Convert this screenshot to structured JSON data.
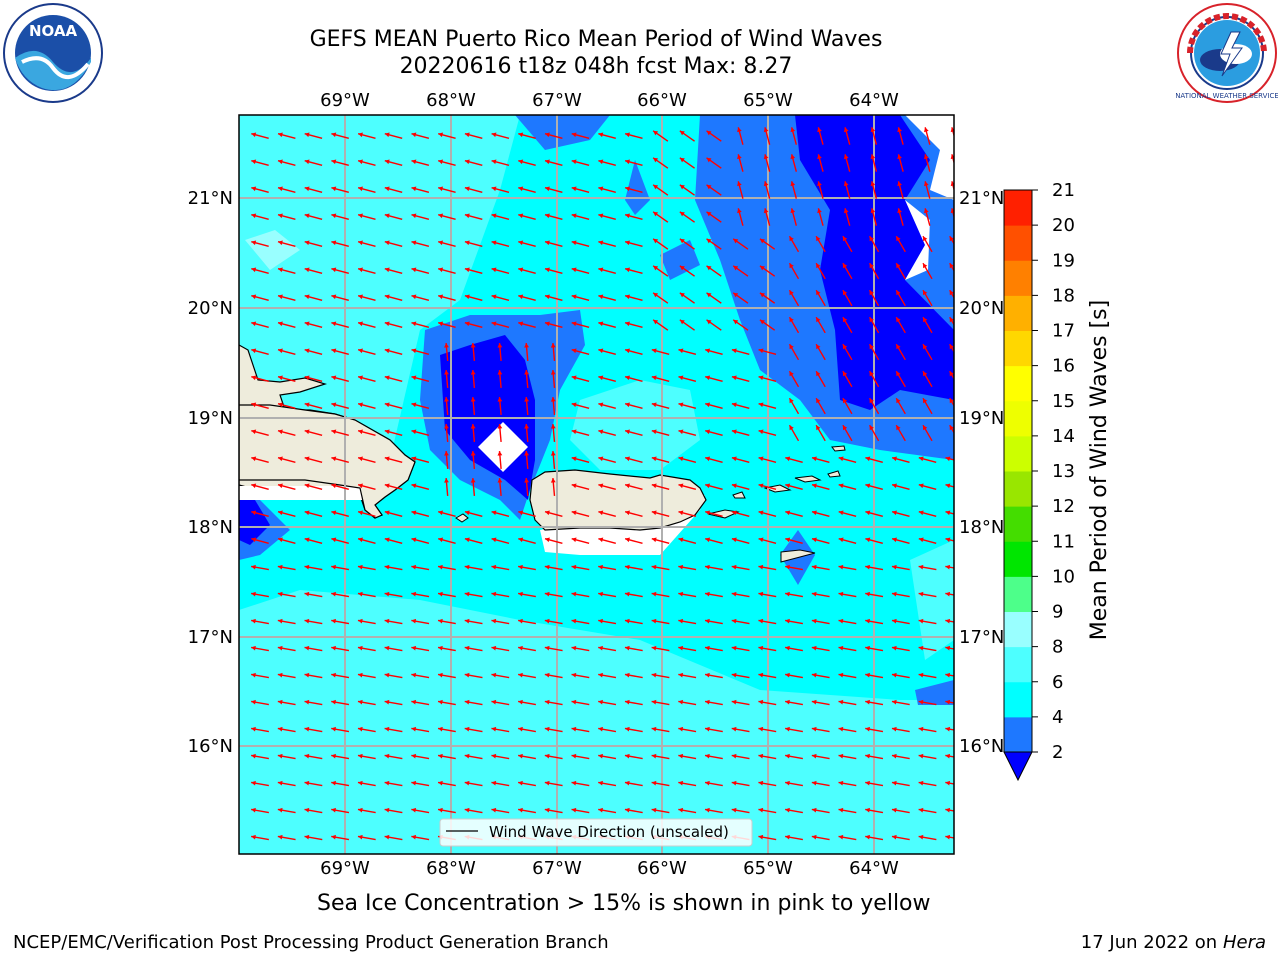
{
  "title": {
    "line1": "GEFS MEAN Puerto Rico Mean Period of Wind Waves",
    "line2": "20220616 t18z 048h fcst   Max: 8.27"
  },
  "map": {
    "lon_labels": [
      "69°W",
      "68°W",
      "67°W",
      "66°W",
      "65°W",
      "64°W"
    ],
    "lat_labels": [
      "21°N",
      "20°N",
      "19°N",
      "18°N",
      "17°N",
      "16°N"
    ],
    "legend_label": "Wind Wave Direction (unscaled)",
    "arrow_color": "#ff0000",
    "land_color": "#eeecdc",
    "wave_direction": "toward west (from east)"
  },
  "colorbar": {
    "label": "Mean Period of Wind Waves [s]",
    "ticks": [
      "2",
      "4",
      "6",
      "8",
      "9",
      "10",
      "11",
      "12",
      "13",
      "14",
      "15",
      "16",
      "17",
      "18",
      "19",
      "20",
      "21"
    ],
    "colors": [
      "#0000ff",
      "#1e78ff",
      "#00ffff",
      "#4dffff",
      "#99ffff",
      "#4dff8a",
      "#00e600",
      "#44dd00",
      "#99e600",
      "#ccff00",
      "#eeff00",
      "#ffff00",
      "#ffd700",
      "#ffb000",
      "#ff8000",
      "#ff5000",
      "#ff2000",
      "#ff0000"
    ],
    "min_color": "#0000ff"
  },
  "footer": {
    "ice_note": "Sea Ice Concentration > 15% is shown in pink to yellow",
    "credit": "NCEP/EMC/Verification Post Processing Product Generation Branch",
    "date": "17 Jun 2022 on",
    "host": "Hera"
  },
  "logos": {
    "noaa_text": "NOAA",
    "nws_text": "NATIONAL WEATHER SERVICE"
  }
}
